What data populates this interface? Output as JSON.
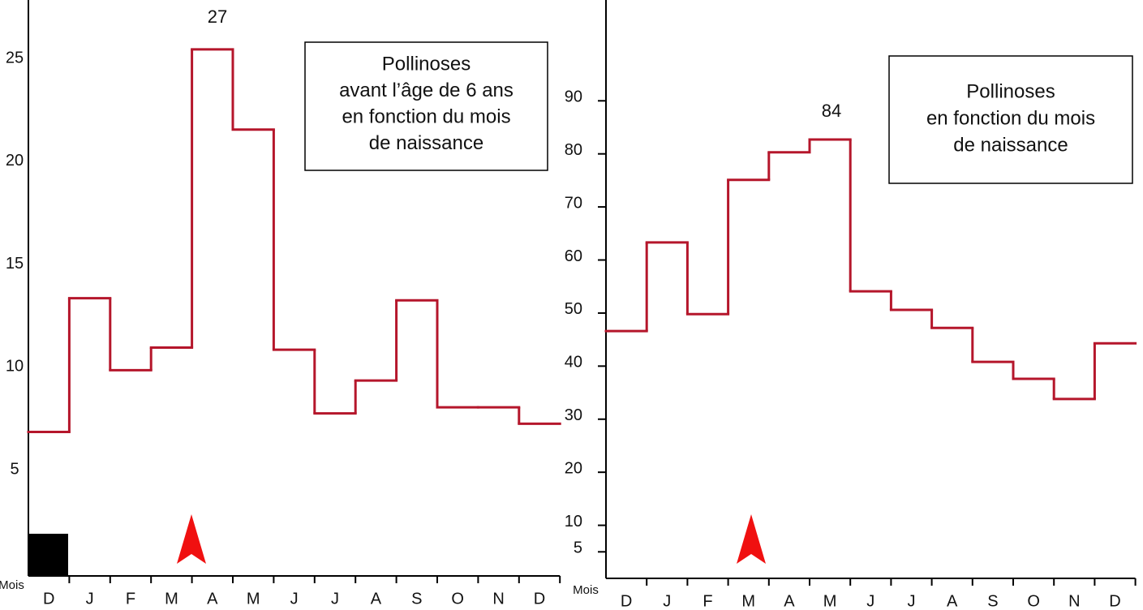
{
  "chart_data": [
    {
      "type": "step",
      "title": [
        "Pollinoses",
        "avant l’âge de 6 ans",
        "en fonction du mois",
        "de naissance"
      ],
      "xlabel": "Mois",
      "annotation": "27",
      "categories": [
        "D",
        "J",
        "F",
        "M",
        "A",
        "M",
        "J",
        "J",
        "A",
        "S",
        "O",
        "N",
        "D"
      ],
      "values": [
        7,
        13.5,
        10,
        11.1,
        25.6,
        21.7,
        11,
        7.9,
        9.5,
        13.4,
        8.2,
        8.2,
        7.4
      ],
      "color": "#b5162b",
      "ylim": [
        0,
        28
      ],
      "yticks": [
        5,
        10,
        15,
        20,
        25
      ]
    },
    {
      "type": "step",
      "title": [
        "Pollinoses",
        "en fonction du mois",
        "de naissance"
      ],
      "xlabel": "Mois",
      "annotation": "84",
      "categories": [
        "D",
        "J",
        "F",
        "M",
        "A",
        "M",
        "J",
        "J",
        "A",
        "S",
        "O",
        "N",
        "D"
      ],
      "values": [
        46.6,
        63.3,
        49.8,
        75.1,
        80.3,
        82.7,
        54.1,
        50.6,
        47.2,
        40.8,
        37.6,
        33.8,
        44.3
      ],
      "color": "#b5162b",
      "ylim": [
        0,
        109
      ],
      "yticks": [
        5,
        10,
        20,
        30,
        40,
        50,
        60,
        70,
        80,
        90
      ]
    }
  ]
}
